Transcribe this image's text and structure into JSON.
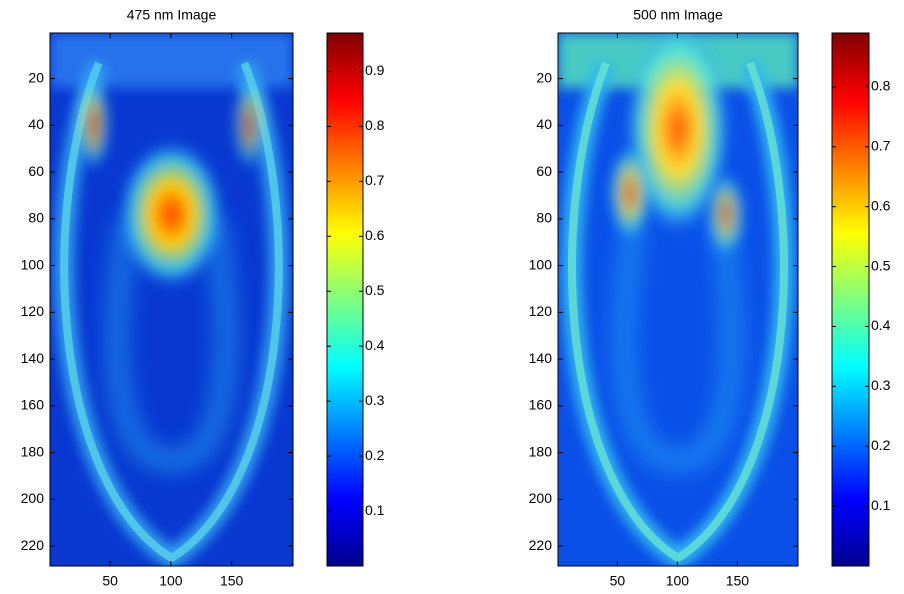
{
  "chart_data": [
    {
      "type": "heatmap",
      "title": "475 nm Image",
      "colormap": "jet",
      "y_reversed": true,
      "xlim": [
        0.5,
        200.5
      ],
      "ylim": [
        0.5,
        228.5
      ],
      "xticks": [
        50,
        100,
        150
      ],
      "yticks": [
        20,
        40,
        60,
        80,
        100,
        120,
        140,
        160,
        180,
        200,
        220
      ],
      "clim": [
        0,
        0.97
      ],
      "cticks": [
        0.1,
        0.2,
        0.3,
        0.4,
        0.5,
        0.6,
        0.7,
        0.8,
        0.9
      ]
    },
    {
      "type": "heatmap",
      "title": "500 nm Image",
      "colormap": "jet",
      "y_reversed": true,
      "xlim": [
        0.5,
        200.5
      ],
      "ylim": [
        0.5,
        228.5
      ],
      "xticks": [
        50,
        100,
        150
      ],
      "yticks": [
        20,
        40,
        60,
        80,
        100,
        120,
        140,
        160,
        180,
        200,
        220
      ],
      "clim": [
        0,
        0.89
      ],
      "cticks": [
        0.1,
        0.2,
        0.3,
        0.4,
        0.5,
        0.6,
        0.7,
        0.8
      ]
    }
  ]
}
